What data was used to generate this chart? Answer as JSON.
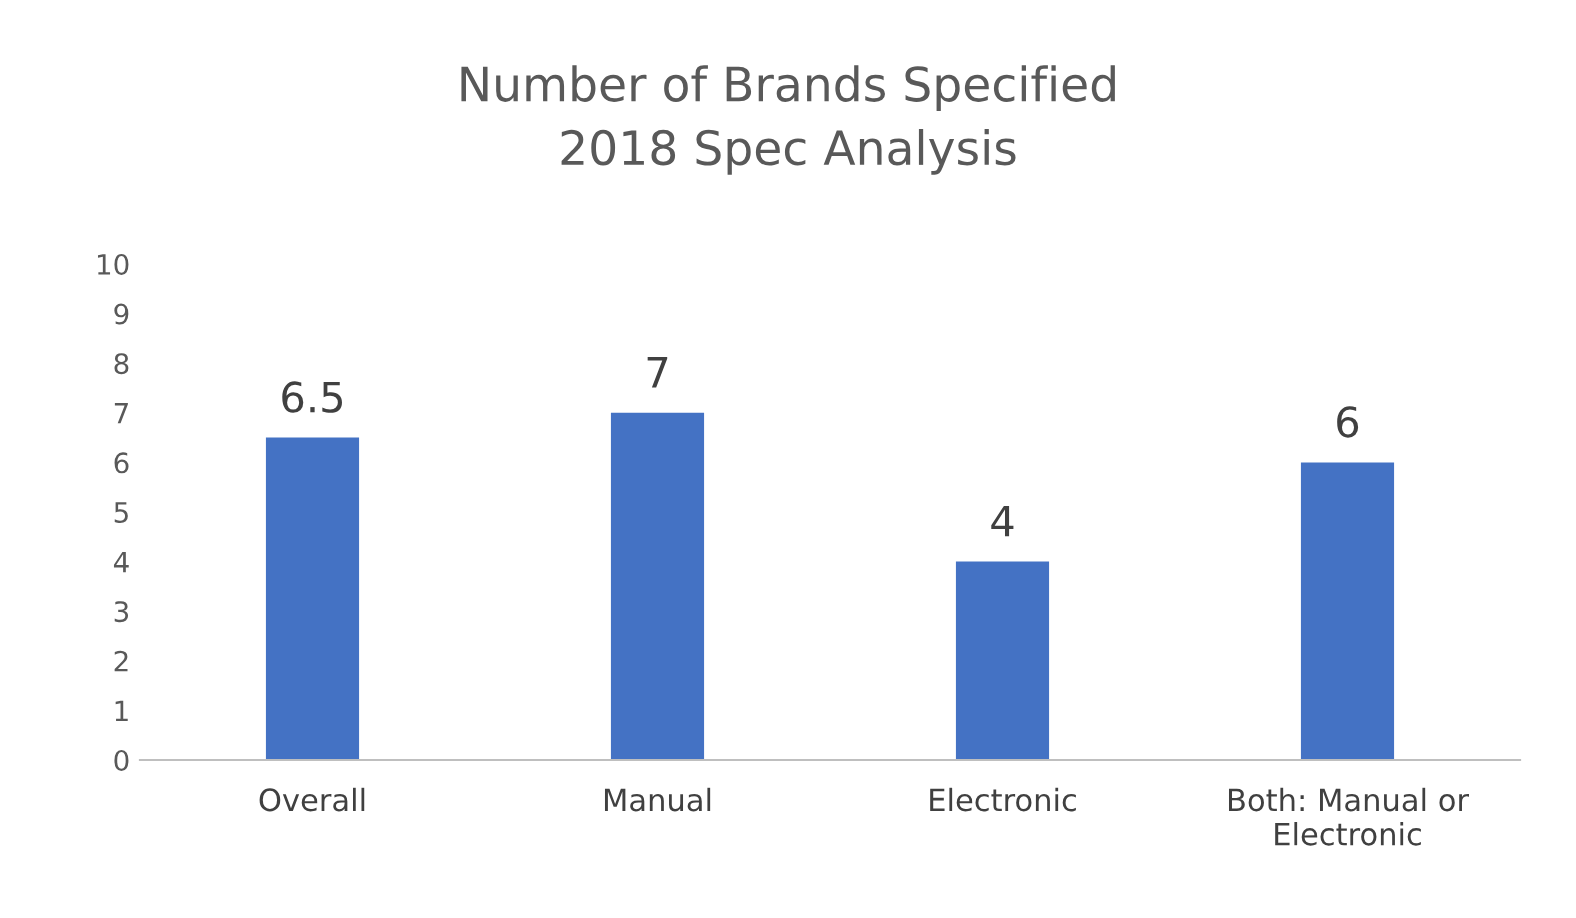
{
  "chart_data": {
    "type": "bar",
    "title": "Number of Brands Specified\n2018 Spec Analysis",
    "categories": [
      "Overall",
      "Manual",
      "Electronic",
      "Both: Manual or\nElectronic"
    ],
    "values": [
      6.5,
      7,
      4,
      6
    ],
    "color": "#4472c4",
    "ylim": [
      0,
      10
    ],
    "yticks": [
      0,
      1,
      2,
      3,
      4,
      5,
      6,
      7,
      8,
      9,
      10
    ],
    "data_labels": true,
    "grid": false,
    "legend": false
  }
}
